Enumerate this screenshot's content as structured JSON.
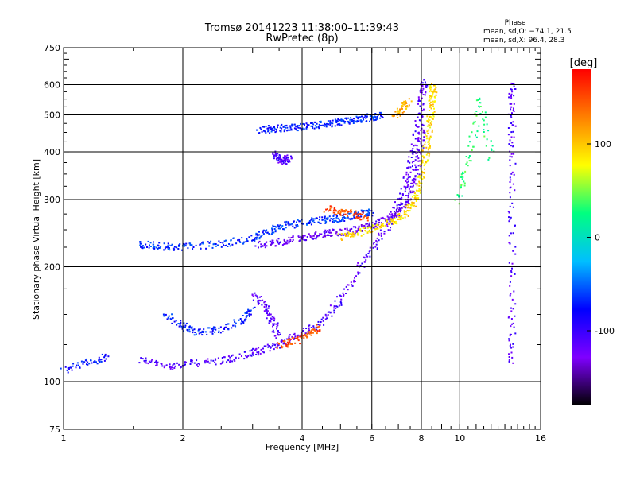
{
  "chart_data": {
    "type": "scatter",
    "title": "Tromsø 20141223 11:38:00–11:39:43",
    "subtitle": "RwPretec (8p)",
    "xlabel": "Frequency [MHz]",
    "ylabel": "Stationary phase Virtual Height [km]",
    "xscale": "log",
    "yscale": "log",
    "xlim": [
      1,
      16
    ],
    "ylim": [
      75,
      750
    ],
    "x_ticks": [
      1,
      2,
      4,
      6,
      8,
      10,
      16
    ],
    "x_tick_labels": [
      "1",
      "2",
      "4",
      "6",
      "8",
      "10",
      "16"
    ],
    "y_ticks": [
      75,
      100,
      200,
      300,
      400,
      500,
      600,
      750
    ],
    "y_tick_labels": [
      "75",
      "100",
      "200",
      "300",
      "400",
      "500",
      "600",
      "750"
    ],
    "grid": true,
    "colorbar": {
      "label": "[deg]",
      "range": [
        -180,
        180
      ],
      "ticks": [
        100,
        0,
        -100
      ],
      "tick_labels": [
        "100",
        "0",
        "-100"
      ],
      "colors": [
        "#000000",
        "#7f00ff",
        "#0000ff",
        "#00bfff",
        "#00ff80",
        "#ffff00",
        "#ff8000",
        "#ff0000"
      ]
    },
    "stats": {
      "header": "Phase",
      "line_o": "mean, sd,O: −74.1, 21.5",
      "line_x": "mean, sd,X:  96.4, 28.3"
    },
    "traces": [
      {
        "x": [
          1.55,
          1.8,
          2.1,
          2.5,
          2.9,
          3.2,
          3.6,
          4.0,
          4.5,
          5.0,
          5.6,
          6.2,
          6.8,
          7.2,
          7.5,
          7.8,
          8.0,
          8.1
        ],
        "y": [
          115,
          110,
          112,
          114,
          118,
          122,
          128,
          135,
          145,
          165,
          200,
          235,
          275,
          320,
          380,
          460,
          560,
          620
        ],
        "phase": -110
      },
      {
        "x": [
          1.55,
          1.7,
          1.9,
          2.2,
          2.6,
          3.0,
          3.3,
          3.6,
          4.0,
          4.4,
          4.8,
          5.2,
          5.6,
          6.0
        ],
        "y": [
          230,
          228,
          226,
          228,
          232,
          238,
          250,
          258,
          262,
          266,
          268,
          272,
          276,
          280
        ],
        "phase": -65
      },
      {
        "x": [
          3.1,
          3.4,
          3.8,
          4.2,
          4.6,
          5.0,
          5.5,
          6.0,
          6.5,
          7.0,
          7.4,
          7.7,
          7.9,
          8.0
        ],
        "y": [
          230,
          232,
          238,
          242,
          246,
          248,
          252,
          258,
          268,
          280,
          300,
          340,
          400,
          470
        ],
        "phase": -120
      },
      {
        "x": [
          5.0,
          5.6,
          6.2,
          6.8,
          7.3,
          7.7,
          7.95,
          8.15,
          8.3,
          8.4,
          8.5,
          8.55
        ],
        "y": [
          240,
          248,
          256,
          266,
          278,
          300,
          340,
          390,
          440,
          500,
          560,
          610
        ],
        "phase": 90
      },
      {
        "x": [
          3.1,
          3.4,
          3.7,
          4.0,
          4.4,
          4.8,
          5.2,
          5.6,
          6.0,
          6.3
        ],
        "y": [
          458,
          462,
          464,
          468,
          472,
          478,
          484,
          490,
          496,
          500
        ],
        "phase": -70
      },
      {
        "x": [
          3.4,
          3.5,
          3.6,
          3.7
        ],
        "y": [
          395,
          385,
          378,
          390
        ],
        "phase": -110
      },
      {
        "x": [
          1.0,
          1.15,
          1.3
        ],
        "y": [
          108,
          113,
          117
        ],
        "phase": -75
      },
      {
        "x": [
          1.8,
          2.0,
          2.2,
          2.5,
          2.8,
          3.0
        ],
        "y": [
          150,
          140,
          135,
          138,
          145,
          155
        ],
        "phase": -70
      },
      {
        "x": [
          3.0,
          3.2,
          3.35,
          3.5
        ],
        "y": [
          170,
          160,
          145,
          130
        ],
        "phase": -115
      },
      {
        "x": [
          3.5,
          3.8,
          4.1,
          4.4
        ],
        "y": [
          125,
          128,
          133,
          140
        ],
        "phase": 150
      },
      {
        "x": [
          4.6,
          5.0,
          5.4,
          5.8
        ],
        "y": [
          285,
          280,
          276,
          270
        ],
        "phase": 150
      },
      {
        "x": [
          6.8,
          7.1,
          7.4
        ],
        "y": [
          500,
          520,
          545
        ],
        "phase": 110
      },
      {
        "x": [
          13.5,
          13.5,
          13.5,
          13.5,
          13.5,
          13.5
        ],
        "y": [
          110,
          150,
          250,
          380,
          500,
          620
        ],
        "phase": -110
      },
      {
        "x": [
          9.8,
          10.5,
          11.2,
          12.0
        ],
        "y": [
          300,
          380,
          560,
          380
        ],
        "phase": 30
      }
    ]
  }
}
